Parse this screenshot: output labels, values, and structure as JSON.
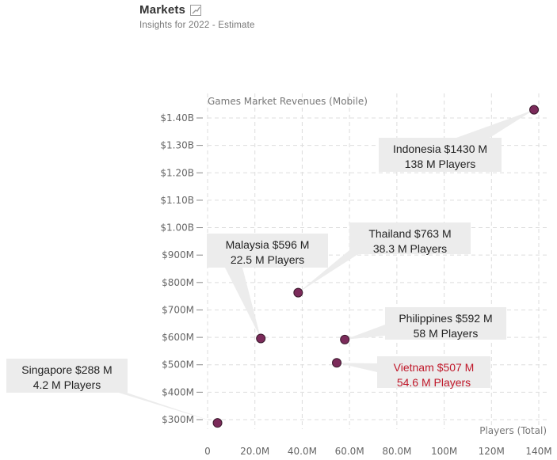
{
  "header": {
    "title": "Markets",
    "subtitle": "Insights for 2022 - Estimate",
    "icon": "trend-line-icon"
  },
  "chart_data": {
    "type": "scatter",
    "title": "",
    "ylabel": "Games Market Revenues (Mobile)",
    "xlabel": "Players (Total)",
    "xlim": [
      0,
      140
    ],
    "ylim": [
      300,
      1400
    ],
    "x_ticks": [
      0,
      20,
      40,
      60,
      80,
      100,
      120,
      140
    ],
    "x_tick_labels": [
      "0",
      "20.0M",
      "40.0M",
      "60.0M",
      "80.0M",
      "100M",
      "120M",
      "140M"
    ],
    "y_ticks": [
      300,
      400,
      500,
      600,
      700,
      800,
      900,
      1000,
      1100,
      1200,
      1300,
      1400
    ],
    "y_tick_labels": [
      "$300M",
      "$400M",
      "$500M",
      "$600M",
      "$700M",
      "$800M",
      "$900M",
      "$1.00B",
      "$1.10B",
      "$1.20B",
      "$1.30B",
      "$1.40B"
    ],
    "grid": true,
    "point_color": "#7b2a5a",
    "highlight_color": "#c0182a",
    "points": [
      {
        "country": "Indonesia",
        "x": 138,
        "y": 1430,
        "label1": "Indonesia $1430 M",
        "label2": "138 M Players",
        "highlight": false
      },
      {
        "country": "Thailand",
        "x": 38.3,
        "y": 763,
        "label1": "Thailand $763 M",
        "label2": "38.3 M Players",
        "highlight": false
      },
      {
        "country": "Malaysia",
        "x": 22.5,
        "y": 596,
        "label1": "Malaysia $596 M",
        "label2": "22.5 M Players",
        "highlight": false
      },
      {
        "country": "Philippines",
        "x": 58,
        "y": 592,
        "label1": "Philippines $592 M",
        "label2": "58 M Players",
        "highlight": false
      },
      {
        "country": "Vietnam",
        "x": 54.6,
        "y": 507,
        "label1": "Vietnam $507 M",
        "label2": "54.6 M Players",
        "highlight": true
      },
      {
        "country": "Singapore",
        "x": 4.2,
        "y": 288,
        "label1": "Singapore $288 M",
        "label2": "4.2 M Players",
        "highlight": false
      }
    ]
  }
}
